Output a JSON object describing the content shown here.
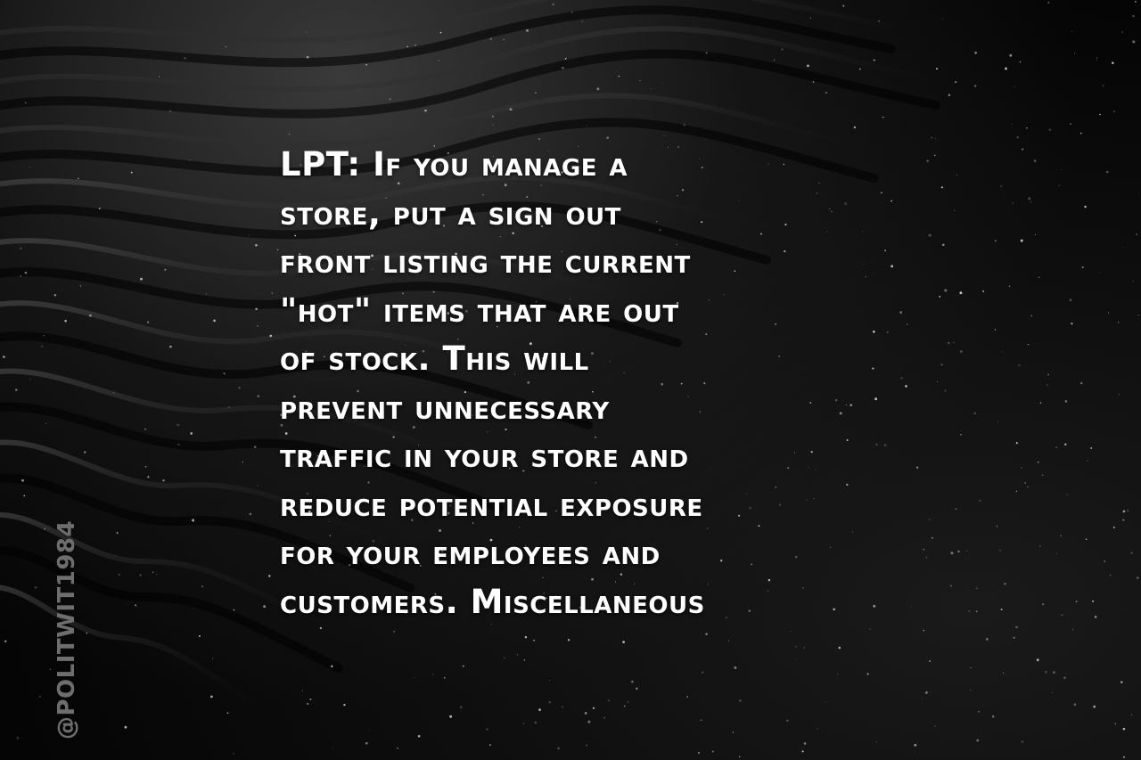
{
  "post": {
    "text": "LPT: If you manage a\nstore, put a sign out\nfront listing the current\n\"hot\" items that are out\nof stock. This will\nprevent unnecessary\ntraffic in your store and\nreduce potential exposure\nfor your employees and\ncustomers. Miscellaneous"
  },
  "watermark": {
    "handle": "@POLITWIT1984"
  },
  "background": {
    "subject": "black sand dunes",
    "color": "#0a0a0a"
  }
}
